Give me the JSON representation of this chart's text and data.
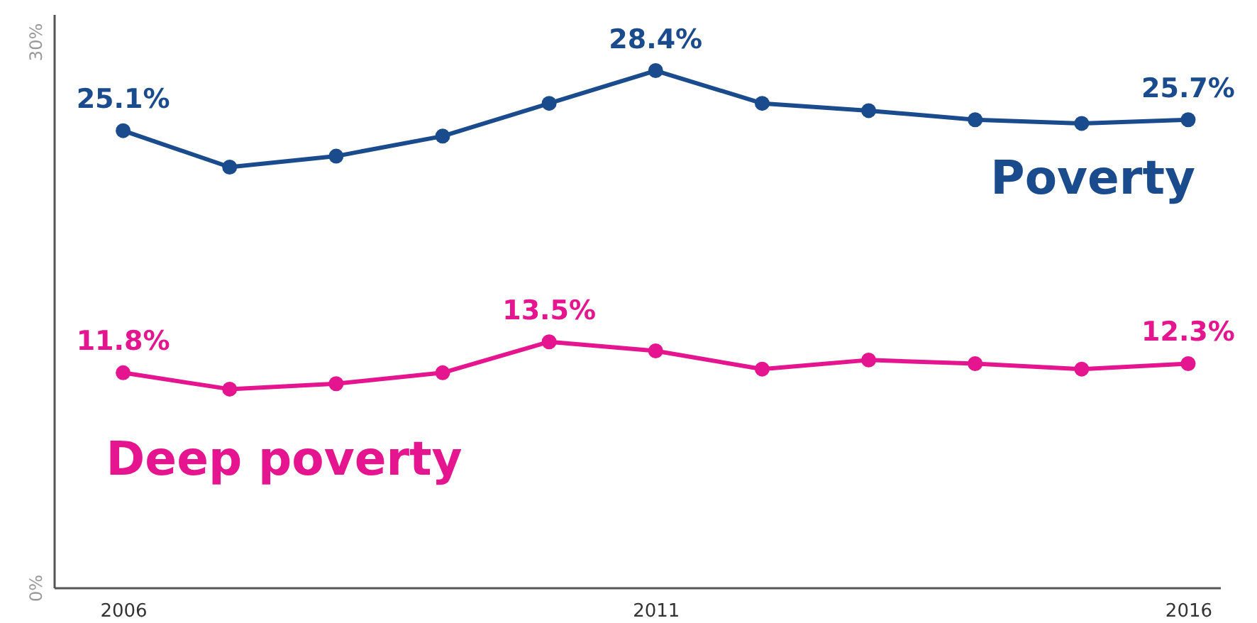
{
  "chart_data": {
    "type": "line",
    "x": [
      2006,
      2007,
      2008,
      2009,
      2010,
      2011,
      2012,
      2013,
      2014,
      2015,
      2016
    ],
    "xlim": [
      2005.35,
      2016.3
    ],
    "xticks": [
      2006,
      2011,
      2016
    ],
    "ylim": [
      0,
      31.5
    ],
    "yticks": [
      {
        "value": 0,
        "label": "0%"
      },
      {
        "value": 30,
        "label": "30%"
      }
    ],
    "grid": false,
    "marker": "circle",
    "line_style": "solid",
    "series": [
      {
        "name": "Poverty",
        "color": "#1a4b8c",
        "values": [
          25.1,
          23.1,
          23.7,
          24.8,
          26.6,
          28.4,
          26.6,
          26.2,
          25.7,
          25.5,
          25.7
        ],
        "value_labels": [
          "25.1%",
          null,
          null,
          null,
          null,
          "28.4%",
          null,
          null,
          null,
          null,
          "25.7%"
        ]
      },
      {
        "name": "Deep poverty",
        "color": "#e5158f",
        "values": [
          11.8,
          10.9,
          11.2,
          11.8,
          13.5,
          13.0,
          12.0,
          12.5,
          12.3,
          12.0,
          12.3
        ],
        "value_labels": [
          "11.8%",
          null,
          null,
          null,
          "13.5%",
          null,
          null,
          null,
          null,
          null,
          "12.3%"
        ]
      }
    ]
  }
}
